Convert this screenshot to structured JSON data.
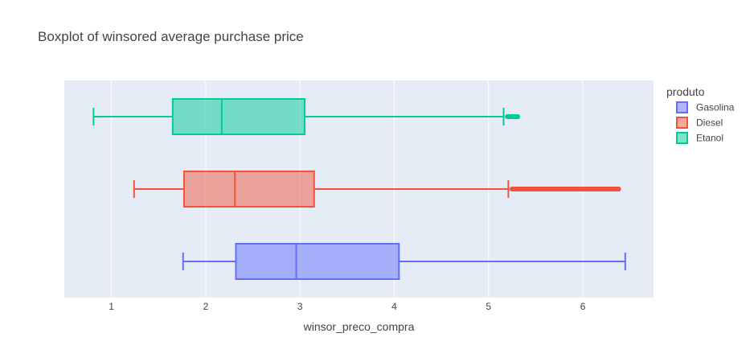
{
  "chart_data": {
    "type": "box",
    "orientation": "horizontal",
    "title": "Boxplot of winsored average purchase price",
    "xlabel": "winsor_preco_compra",
    "ylabel": "",
    "xlim": [
      0.5,
      6.75
    ],
    "x_ticks": [
      1,
      2,
      3,
      4,
      5,
      6
    ],
    "grid": true,
    "legend": {
      "title": "produto",
      "placement": "top-right"
    },
    "series": [
      {
        "name": "Gasolina",
        "color": "#636efa",
        "whisker_low": 1.76,
        "q1": 2.32,
        "median": 2.96,
        "q3": 4.05,
        "whisker_high": 6.45,
        "outliers": []
      },
      {
        "name": "Diesel",
        "color": "#ef553b",
        "whisker_low": 1.24,
        "q1": 1.77,
        "median": 2.31,
        "q3": 3.15,
        "whisker_high": 5.21,
        "outliers": [
          5.25,
          5.4,
          5.55,
          5.7,
          5.85,
          6.0,
          6.15,
          6.3,
          6.38
        ]
      },
      {
        "name": "Etanol",
        "color": "#00cc96",
        "whisker_low": 0.81,
        "q1": 1.65,
        "median": 2.17,
        "q3": 3.05,
        "whisker_high": 5.16,
        "outliers": [
          5.2,
          5.24,
          5.28,
          5.31
        ]
      }
    ]
  }
}
